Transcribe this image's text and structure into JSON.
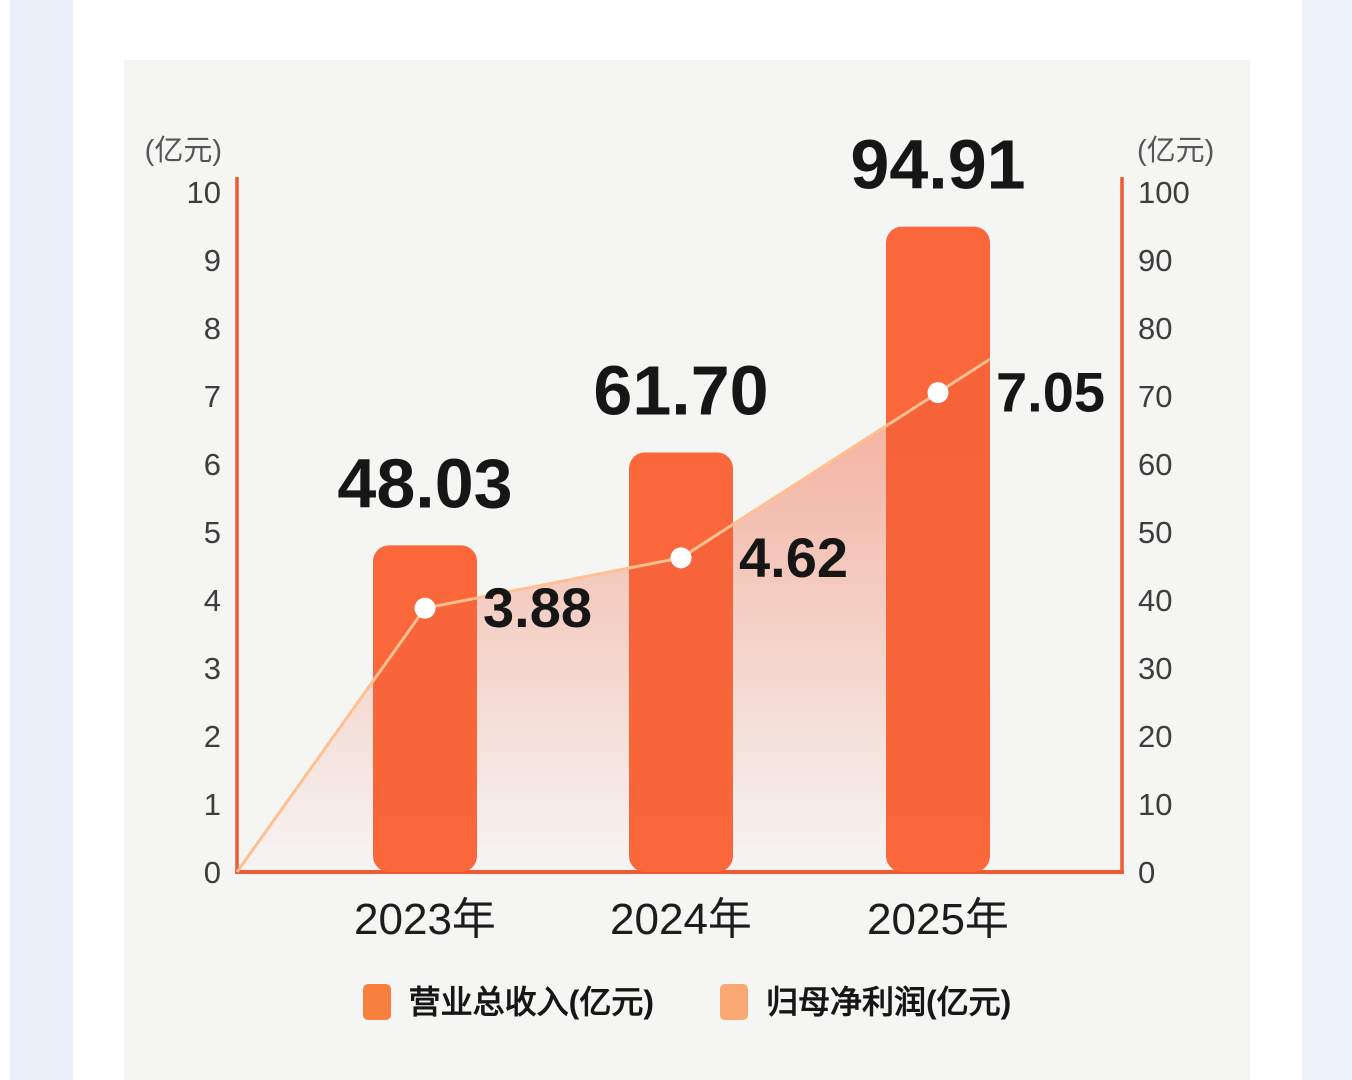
{
  "page": {
    "card_color": "#F5F5F4",
    "left_margin_color": "#EAEEF8",
    "right_margin_color": "#EDF1FA"
  },
  "chart_data": {
    "type": "combo",
    "categories": [
      "2023年",
      "2024年",
      "2025年"
    ],
    "series": [
      {
        "name": "营业总收入(亿元)",
        "chart_type": "bar",
        "axis": "right",
        "values": [
          48.03,
          61.7,
          94.91
        ],
        "labels": [
          "48.03",
          "61.70",
          "94.91"
        ],
        "color": "#F9673A"
      },
      {
        "name": "归母净利润(亿元)",
        "chart_type": "line",
        "axis": "left",
        "values": [
          3.88,
          4.62,
          7.05
        ],
        "labels": [
          "3.88",
          "4.62",
          "7.05"
        ],
        "line_color": "#FFC091",
        "marker_color": "#FFFFFF",
        "area_fill_color": "#F35E38"
      }
    ],
    "left_axis": {
      "unit_label": "(亿元)",
      "min": 0,
      "max": 10,
      "ticks": [
        "10",
        "9",
        "8",
        "7",
        "6",
        "5",
        "4",
        "3",
        "2",
        "1",
        "0"
      ]
    },
    "right_axis": {
      "unit_label": "(亿元)",
      "min": 0,
      "max": 100,
      "ticks": [
        "100",
        "90",
        "80",
        "70",
        "60",
        "50",
        "40",
        "30",
        "20",
        "10",
        "0"
      ]
    },
    "axis_color": "#EE5B35",
    "grid": false,
    "legend_position": "bottom",
    "legend": [
      {
        "label": "营业总收入(亿元)",
        "color": "#F8803E"
      },
      {
        "label": "归母净利润(亿元)",
        "color": "#F9A873"
      }
    ],
    "text_color": "#161616",
    "tick_color": "#3D3D3D",
    "category_label_color": "#1C1C1C",
    "unit_label_color": "#555555"
  }
}
